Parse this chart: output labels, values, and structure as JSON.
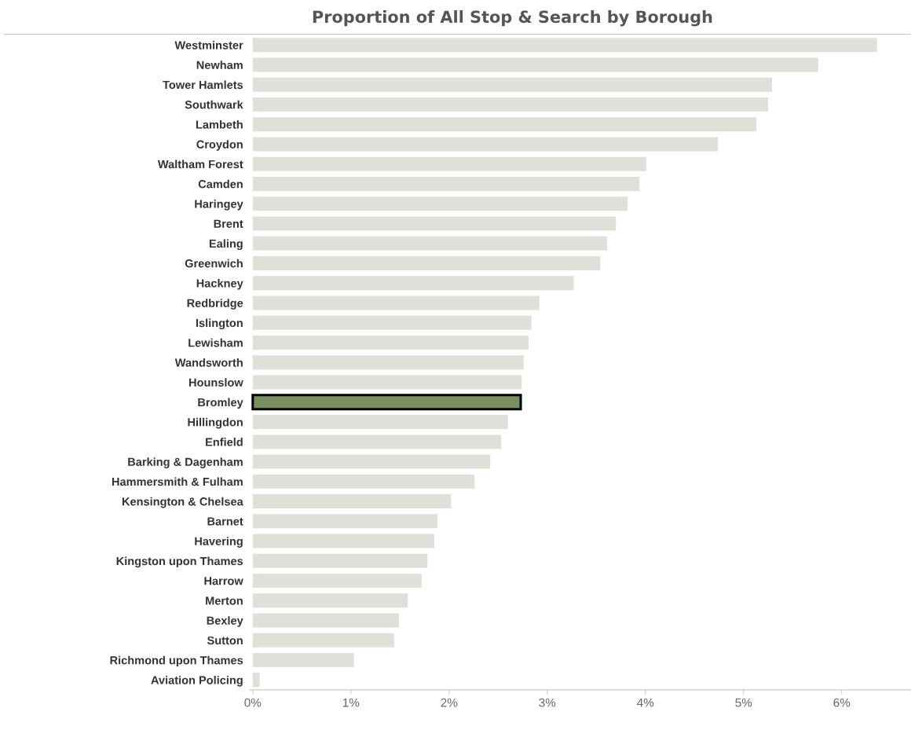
{
  "chart_data": {
    "type": "bar",
    "orientation": "horizontal",
    "title": "Proportion of All Stop & Search by Borough",
    "categories": [
      "Westminster",
      "Newham",
      "Tower Hamlets",
      "Southwark",
      "Lambeth",
      "Croydon",
      "Waltham Forest",
      "Camden",
      "Haringey",
      "Brent",
      "Ealing",
      "Greenwich",
      "Hackney",
      "Redbridge",
      "Islington",
      "Lewisham",
      "Wandsworth",
      "Hounslow",
      "Bromley",
      "Hillingdon",
      "Enfield",
      "Barking & Dagenham",
      "Hammersmith & Fulham",
      "Kensington & Chelsea",
      "Barnet",
      "Havering",
      "Kingston upon Thames",
      "Harrow",
      "Merton",
      "Bexley",
      "Sutton",
      "Richmond upon Thames",
      "Aviation Policing"
    ],
    "values": [
      6.36,
      5.76,
      5.29,
      5.25,
      5.13,
      4.74,
      4.01,
      3.94,
      3.82,
      3.7,
      3.61,
      3.54,
      3.27,
      2.92,
      2.84,
      2.81,
      2.76,
      2.74,
      2.73,
      2.6,
      2.53,
      2.42,
      2.26,
      2.02,
      1.88,
      1.85,
      1.78,
      1.72,
      1.58,
      1.49,
      1.44,
      1.03,
      0.07
    ],
    "colors": [
      "#dde2d8",
      "#dde2d8",
      "#dde2d8",
      "#dde2d8",
      "#dde2d8",
      "#dde2d8",
      "#dde2d8",
      "#dde2d8",
      "#dde2d8",
      "#dde2d8",
      "#dde2d8",
      "#dde2d8",
      "#dde2d8",
      "#dde2d8",
      "#dde2d8",
      "#dde2d8",
      "#dde2d8",
      "#dde2d8",
      "#7a9a55",
      "#dde2d8",
      "#dde2d8",
      "#dde2d8",
      "#dde2d8",
      "#dde2d8",
      "#dde2d8",
      "#dde2d8",
      "#dde2d8",
      "#dde2d8",
      "#dde2d8",
      "#dde2d8",
      "#dde2d8",
      "#dde2d8",
      "#dde2d8"
    ],
    "xlim": [
      -0.03,
      6.7
    ],
    "xticks": [
      {
        "value": 0,
        "label": "0%"
      },
      {
        "value": 1,
        "label": "1%"
      },
      {
        "value": 2,
        "label": "2%"
      },
      {
        "value": 3,
        "label": "3%"
      },
      {
        "value": 4,
        "label": "4%"
      },
      {
        "value": 5,
        "label": "5%"
      },
      {
        "value": 6,
        "label": "6%"
      }
    ],
    "grid": false,
    "legend": false
  }
}
